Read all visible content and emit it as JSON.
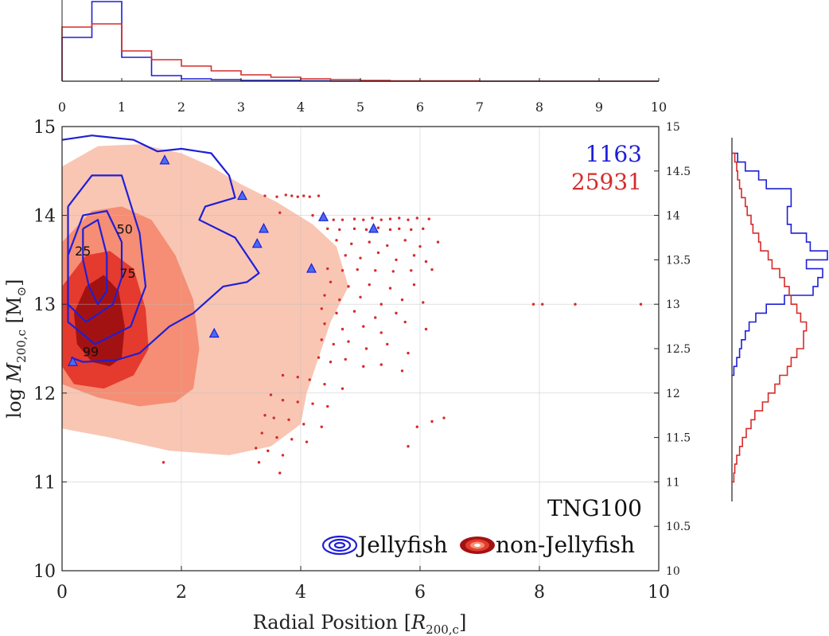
{
  "chart_data": [
    {
      "type": "histogram",
      "panel": "top-marginal",
      "x_ticks": [
        "0",
        "1",
        "2",
        "3",
        "4",
        "5",
        "6",
        "7",
        "8",
        "9",
        "10"
      ],
      "xlim": [
        0,
        10
      ],
      "bin_edges": [
        0,
        0.5,
        1,
        1.5,
        2,
        2.5,
        3,
        3.5,
        4,
        4.5,
        5,
        5.5,
        6,
        6.5,
        7,
        7.5,
        8,
        8.5,
        9,
        9.5,
        10
      ],
      "series": [
        {
          "color": "#1f1fd6",
          "values": [
            0.55,
            1.0,
            0.3,
            0.07,
            0.03,
            0.02,
            0.01,
            0.01,
            0.005,
            0.0,
            0,
            0,
            0,
            0,
            0,
            0,
            0,
            0,
            0,
            0
          ]
        },
        {
          "color": "#d62b2b",
          "values": [
            0.68,
            0.72,
            0.38,
            0.27,
            0.19,
            0.13,
            0.08,
            0.05,
            0.03,
            0.02,
            0.01,
            0.005,
            0.005,
            0.005,
            0,
            0,
            0,
            0,
            0,
            0
          ]
        }
      ]
    },
    {
      "type": "scatter",
      "panel": "main",
      "xlabel": "Radial Position [R200,c]",
      "ylabel": "log M200,c [M⊙]",
      "xlim": [
        0,
        10
      ],
      "ylim": [
        10,
        15
      ],
      "x_ticks": [
        "0",
        "2",
        "4",
        "6",
        "8",
        "10"
      ],
      "y_ticks": [
        "10",
        "11",
        "12",
        "13",
        "14",
        "15"
      ],
      "right_y_ticks": [
        "10",
        "10.5",
        "11",
        "11.5",
        "12",
        "12.5",
        "13",
        "13.5",
        "14",
        "14.5",
        "15"
      ],
      "grid": true,
      "counts": {
        "jellyfish": "1163",
        "non_jellyfish": "25931"
      },
      "simulation_label": "TNG100",
      "legend": {
        "position": "bottom-right",
        "entries": [
          {
            "label": "Jellyfish",
            "color": "#1f1fd6"
          },
          {
            "label": "non-Jellyfish",
            "color": "#d62b2b"
          }
        ]
      },
      "contour_levels": [
        "25",
        "50",
        "75",
        "99"
      ],
      "non_jellyfish_density": {
        "levels": [
          {
            "level": "99",
            "color": "#f9c6b4",
            "polygon": [
              [
                0,
                14.55
              ],
              [
                0.6,
                14.78
              ],
              [
                1.3,
                14.8
              ],
              [
                2.0,
                14.7
              ],
              [
                2.5,
                14.55
              ],
              [
                3.0,
                14.35
              ],
              [
                3.6,
                14.15
              ],
              [
                4.2,
                13.9
              ],
              [
                4.6,
                13.65
              ],
              [
                4.8,
                13.2
              ],
              [
                4.5,
                12.8
              ],
              [
                4.3,
                12.4
              ],
              [
                4.1,
                12.0
              ],
              [
                4.0,
                11.65
              ],
              [
                3.5,
                11.4
              ],
              [
                2.8,
                11.3
              ],
              [
                1.8,
                11.35
              ],
              [
                0.8,
                11.5
              ],
              [
                0,
                11.6
              ]
            ]
          },
          {
            "level": "75",
            "color": "#f58e74",
            "polygon": [
              [
                0,
                13.7
              ],
              [
                0.5,
                14.05
              ],
              [
                1.0,
                14.1
              ],
              [
                1.5,
                13.95
              ],
              [
                1.9,
                13.55
              ],
              [
                2.2,
                13.05
              ],
              [
                2.3,
                12.5
              ],
              [
                2.2,
                12.05
              ],
              [
                1.9,
                11.9
              ],
              [
                1.3,
                11.85
              ],
              [
                0.6,
                11.95
              ],
              [
                0,
                12.1
              ]
            ]
          },
          {
            "level": "50",
            "color": "#e43b2e",
            "polygon": [
              [
                0,
                13.2
              ],
              [
                0.4,
                13.55
              ],
              [
                0.8,
                13.6
              ],
              [
                1.2,
                13.4
              ],
              [
                1.4,
                12.95
              ],
              [
                1.45,
                12.5
              ],
              [
                1.2,
                12.2
              ],
              [
                0.7,
                12.05
              ],
              [
                0.2,
                12.1
              ],
              [
                0,
                12.3
              ]
            ]
          },
          {
            "level": "25",
            "color": "#a31212",
            "polygon": [
              [
                0.2,
                12.9
              ],
              [
                0.4,
                13.2
              ],
              [
                0.7,
                13.33
              ],
              [
                0.95,
                13.15
              ],
              [
                1.05,
                12.75
              ],
              [
                1.0,
                12.4
              ],
              [
                0.8,
                12.3
              ],
              [
                0.5,
                12.35
              ],
              [
                0.25,
                12.55
              ]
            ]
          }
        ]
      },
      "jellyfish_contours": [
        {
          "label": "25",
          "label_at": [
            0.35,
            13.6
          ],
          "points": [
            [
              0.35,
              13.85
            ],
            [
              0.6,
              13.95
            ],
            [
              0.75,
              13.55
            ],
            [
              0.75,
              13.15
            ],
            [
              0.6,
              13.0
            ],
            [
              0.45,
              13.2
            ],
            [
              0.35,
              13.5
            ],
            [
              0.35,
              13.85
            ]
          ]
        },
        {
          "label": "50",
          "label_at": [
            1.05,
            13.85
          ],
          "points": [
            [
              0.1,
              13.55
            ],
            [
              0.35,
              14.0
            ],
            [
              0.75,
              14.05
            ],
            [
              1.0,
              13.7
            ],
            [
              1.0,
              13.3
            ],
            [
              0.85,
              13.0
            ],
            [
              0.4,
              12.8
            ],
            [
              0.1,
              13.0
            ],
            [
              0.1,
              13.55
            ]
          ]
        },
        {
          "label": "75",
          "label_at": [
            1.1,
            13.35
          ],
          "points": [
            [
              0.1,
              14.1
            ],
            [
              0.5,
              14.45
            ],
            [
              1.0,
              14.45
            ],
            [
              1.3,
              13.8
            ],
            [
              1.4,
              13.2
            ],
            [
              1.15,
              12.75
            ],
            [
              0.55,
              12.55
            ],
            [
              0.1,
              12.8
            ],
            [
              0.1,
              14.1
            ]
          ]
        },
        {
          "label": "99",
          "label_at": [
            0.48,
            12.47
          ],
          "points": [
            [
              0,
              14.85
            ],
            [
              0.5,
              14.9
            ],
            [
              1.2,
              14.85
            ],
            [
              1.6,
              14.72
            ],
            [
              2.0,
              14.75
            ],
            [
              2.5,
              14.7
            ],
            [
              2.8,
              14.45
            ],
            [
              2.9,
              14.2
            ],
            [
              2.4,
              14.1
            ],
            [
              2.3,
              13.95
            ],
            [
              2.9,
              13.75
            ],
            [
              3.1,
              13.55
            ],
            [
              3.3,
              13.35
            ],
            [
              3.1,
              13.25
            ],
            [
              2.7,
              13.2
            ],
            [
              2.2,
              12.9
            ],
            [
              1.8,
              12.75
            ],
            [
              1.3,
              12.45
            ],
            [
              0.9,
              12.37
            ],
            [
              0.35,
              12.35
            ],
            [
              0.15,
              12.4
            ]
          ]
        }
      ],
      "jellyfish_outliers": {
        "x": [
          1.72,
          3.02,
          4.38,
          5.22,
          3.38,
          3.27,
          4.18,
          2.55,
          0.18
        ],
        "y": [
          14.62,
          14.22,
          13.98,
          13.85,
          13.85,
          13.68,
          13.4,
          12.67,
          12.35
        ]
      },
      "non_jellyfish_outliers": {
        "x": [
          3.4,
          3.6,
          3.75,
          3.85,
          3.95,
          4.05,
          4.15,
          4.3,
          3.65,
          4.2,
          4.55,
          4.7,
          4.9,
          5.05,
          5.2,
          5.35,
          5.5,
          5.65,
          5.8,
          5.95,
          6.15,
          4.45,
          4.65,
          4.9,
          5.1,
          5.3,
          5.5,
          5.65,
          5.85,
          6.05,
          4.6,
          4.85,
          5.15,
          5.45,
          5.75,
          6.0,
          6.3,
          4.75,
          5.0,
          5.3,
          5.6,
          5.9,
          6.1,
          4.45,
          4.7,
          4.95,
          5.25,
          5.55,
          5.85,
          6.2,
          4.5,
          4.8,
          5.15,
          5.5,
          5.9,
          4.4,
          4.65,
          5.0,
          5.35,
          5.7,
          6.05,
          4.35,
          4.6,
          4.9,
          5.25,
          5.6,
          4.4,
          4.7,
          5.05,
          5.35,
          5.75,
          6.1,
          4.35,
          4.55,
          4.8,
          5.1,
          5.45,
          5.8,
          4.3,
          4.5,
          4.75,
          5.05,
          5.35,
          5.7,
          3.7,
          3.95,
          4.15,
          4.4,
          4.7,
          3.5,
          3.7,
          3.95,
          4.2,
          4.45,
          3.4,
          3.55,
          3.8,
          4.05,
          4.35,
          3.35,
          3.6,
          3.85,
          4.1,
          3.25,
          3.45,
          3.7,
          3.3,
          3.65,
          1.7,
          7.9,
          8.05,
          8.6,
          9.7,
          6.4,
          6.2,
          5.95,
          5.8
        ],
        "y": [
          14.22,
          14.21,
          14.23,
          14.22,
          14.21,
          14.22,
          14.21,
          14.22,
          14.03,
          14.0,
          13.95,
          13.95,
          13.96,
          13.95,
          13.97,
          13.95,
          13.96,
          13.97,
          13.95,
          13.97,
          13.96,
          13.85,
          13.84,
          13.85,
          13.84,
          13.86,
          13.84,
          13.85,
          13.84,
          13.85,
          13.72,
          13.68,
          13.7,
          13.66,
          13.72,
          13.65,
          13.7,
          13.55,
          13.52,
          13.58,
          13.5,
          13.55,
          13.48,
          13.4,
          13.38,
          13.39,
          13.38,
          13.37,
          13.38,
          13.39,
          13.25,
          13.2,
          13.22,
          13.18,
          13.22,
          13.1,
          13.05,
          13.08,
          13.0,
          13.05,
          13.02,
          12.95,
          12.9,
          12.92,
          12.85,
          12.9,
          12.78,
          12.72,
          12.75,
          12.68,
          12.8,
          12.72,
          12.6,
          12.55,
          12.58,
          12.5,
          12.55,
          12.45,
          12.4,
          12.35,
          12.38,
          12.3,
          12.32,
          12.25,
          12.2,
          12.18,
          12.15,
          12.1,
          12.05,
          11.98,
          11.92,
          11.9,
          11.88,
          11.85,
          11.75,
          11.72,
          11.7,
          11.65,
          11.62,
          11.55,
          11.5,
          11.48,
          11.45,
          11.38,
          11.35,
          11.3,
          11.22,
          11.1,
          11.22,
          13.0,
          13.0,
          13.0,
          13.0,
          11.72,
          11.68,
          11.62,
          11.4
        ]
      }
    },
    {
      "type": "histogram",
      "panel": "right-marginal",
      "orientation": "horizontal",
      "ylim": [
        11,
        15
      ],
      "series": [
        {
          "color": "#1f1fd6",
          "bin_edges": [
            12.2,
            12.3,
            12.4,
            12.5,
            12.6,
            12.7,
            12.8,
            12.9,
            13.0,
            13.1,
            13.2,
            13.3,
            13.4,
            13.5,
            13.6,
            13.7,
            13.8,
            13.9,
            14.0,
            14.1,
            14.2,
            14.3,
            14.4,
            14.5,
            14.6,
            14.7
          ],
          "values": [
            0.02,
            0.05,
            0.08,
            0.1,
            0.14,
            0.18,
            0.25,
            0.36,
            0.55,
            0.85,
            0.9,
            0.95,
            0.78,
            1.0,
            0.82,
            0.78,
            0.62,
            0.58,
            0.58,
            0.62,
            0.62,
            0.36,
            0.28,
            0.14,
            0.06
          ]
        },
        {
          "color": "#d62b2b",
          "bin_edges": [
            11.0,
            11.1,
            11.2,
            11.3,
            11.4,
            11.5,
            11.6,
            11.7,
            11.8,
            11.9,
            12.0,
            12.1,
            12.2,
            12.3,
            12.4,
            12.5,
            12.6,
            12.7,
            12.8,
            12.9,
            13.0,
            13.1,
            13.2,
            13.3,
            13.4,
            13.5,
            13.6,
            13.7,
            13.8,
            13.9,
            14.0,
            14.1,
            14.2,
            14.3,
            14.4,
            14.5,
            14.6,
            14.7
          ],
          "values": [
            0.02,
            0.03,
            0.05,
            0.08,
            0.11,
            0.15,
            0.2,
            0.24,
            0.32,
            0.38,
            0.45,
            0.5,
            0.58,
            0.62,
            0.68,
            0.75,
            0.75,
            0.78,
            0.72,
            0.68,
            0.62,
            0.6,
            0.55,
            0.5,
            0.42,
            0.38,
            0.3,
            0.28,
            0.22,
            0.2,
            0.16,
            0.14,
            0.1,
            0.08,
            0.06,
            0.05,
            0.03
          ]
        }
      ]
    }
  ]
}
